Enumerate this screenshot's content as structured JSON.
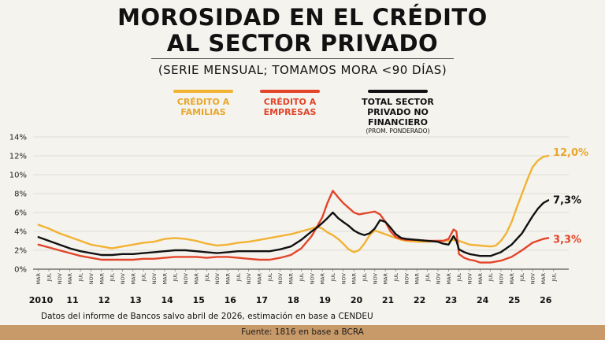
{
  "header": {
    "title_line1": "MOROSIDAD EN EL CRÉDITO",
    "title_line2": "AL SECTOR PRIVADO",
    "subtitle": "(SERIE MENSUAL; TOMAMOS MORA <90 DÍAS)"
  },
  "legend": {
    "families": "CRÉDITO A FAMILIAS",
    "companies": "CRÉDITO A EMPRESAS",
    "total": "TOTAL SECTOR PRIVADO NO FINANCIERO",
    "total_note": "(PROM. PONDERADO)"
  },
  "colors": {
    "families": "#f2b233",
    "companies": "#e2452a",
    "total": "#111111",
    "footer_bg": "#c89a6a",
    "background": "#f5f3ee"
  },
  "chart_data": {
    "type": "line",
    "x_unit": "years",
    "x_range": [
      2010.0,
      2026.83
    ],
    "ylim": [
      0,
      14
    ],
    "y_ticks": [
      "0%",
      "2%",
      "4%",
      "6%",
      "8%",
      "10%",
      "12%",
      "14%"
    ],
    "grid": true,
    "year_labels": [
      {
        "x": 2010.25,
        "label": "2010"
      },
      {
        "x": 2011.25,
        "label": "11"
      },
      {
        "x": 2012.25,
        "label": "12"
      },
      {
        "x": 2013.25,
        "label": "13"
      },
      {
        "x": 2014.25,
        "label": "14"
      },
      {
        "x": 2015.25,
        "label": "15"
      },
      {
        "x": 2016.25,
        "label": "16"
      },
      {
        "x": 2017.25,
        "label": "17"
      },
      {
        "x": 2018.25,
        "label": "18"
      },
      {
        "x": 2019.25,
        "label": "19"
      },
      {
        "x": 2020.25,
        "label": "20"
      },
      {
        "x": 2021.25,
        "label": "21"
      },
      {
        "x": 2022.25,
        "label": "22"
      },
      {
        "x": 2023.25,
        "label": "23"
      },
      {
        "x": 2024.25,
        "label": "24"
      },
      {
        "x": 2025.25,
        "label": "25"
      },
      {
        "x": 2026.25,
        "label": "26"
      }
    ],
    "month_ticks": [
      "MAR",
      "JUL",
      "NOV"
    ],
    "series": [
      {
        "name": "CRÉDITO A FAMILIAS",
        "color": "#f2b233",
        "end_label": "12,0%",
        "points": [
          [
            2010.17,
            4.7
          ],
          [
            2010.5,
            4.3
          ],
          [
            2010.83,
            3.8
          ],
          [
            2011.17,
            3.4
          ],
          [
            2011.5,
            3.0
          ],
          [
            2011.83,
            2.6
          ],
          [
            2012.17,
            2.4
          ],
          [
            2012.5,
            2.2
          ],
          [
            2012.83,
            2.4
          ],
          [
            2013.17,
            2.6
          ],
          [
            2013.5,
            2.8
          ],
          [
            2013.83,
            2.9
          ],
          [
            2014.17,
            3.2
          ],
          [
            2014.5,
            3.3
          ],
          [
            2014.83,
            3.2
          ],
          [
            2015.17,
            3.0
          ],
          [
            2015.5,
            2.7
          ],
          [
            2015.83,
            2.5
          ],
          [
            2016.17,
            2.6
          ],
          [
            2016.5,
            2.8
          ],
          [
            2016.83,
            2.9
          ],
          [
            2017.17,
            3.1
          ],
          [
            2017.5,
            3.3
          ],
          [
            2017.83,
            3.5
          ],
          [
            2018.17,
            3.7
          ],
          [
            2018.5,
            4.0
          ],
          [
            2018.83,
            4.3
          ],
          [
            2019.0,
            4.5
          ],
          [
            2019.17,
            4.3
          ],
          [
            2019.33,
            3.9
          ],
          [
            2019.5,
            3.6
          ],
          [
            2019.67,
            3.2
          ],
          [
            2019.83,
            2.7
          ],
          [
            2020.0,
            2.1
          ],
          [
            2020.17,
            1.8
          ],
          [
            2020.33,
            2.0
          ],
          [
            2020.5,
            2.7
          ],
          [
            2020.67,
            3.6
          ],
          [
            2020.83,
            4.1
          ],
          [
            2021.0,
            3.9
          ],
          [
            2021.17,
            3.7
          ],
          [
            2021.33,
            3.5
          ],
          [
            2021.5,
            3.3
          ],
          [
            2021.67,
            3.1
          ],
          [
            2021.83,
            3.0
          ],
          [
            2022.17,
            2.9
          ],
          [
            2022.5,
            2.9
          ],
          [
            2022.83,
            3.0
          ],
          [
            2023.17,
            3.0
          ],
          [
            2023.33,
            3.1
          ],
          [
            2023.5,
            3.0
          ],
          [
            2023.67,
            2.8
          ],
          [
            2023.83,
            2.6
          ],
          [
            2024.17,
            2.5
          ],
          [
            2024.5,
            2.4
          ],
          [
            2024.67,
            2.5
          ],
          [
            2024.83,
            3.0
          ],
          [
            2025.0,
            3.8
          ],
          [
            2025.17,
            5.0
          ],
          [
            2025.33,
            6.5
          ],
          [
            2025.5,
            8.0
          ],
          [
            2025.67,
            9.5
          ],
          [
            2025.83,
            10.8
          ],
          [
            2026.0,
            11.5
          ],
          [
            2026.17,
            11.9
          ],
          [
            2026.33,
            12.0
          ]
        ]
      },
      {
        "name": "CRÉDITO A EMPRESAS",
        "color": "#e2452a",
        "end_label": "3,3%",
        "points": [
          [
            2010.17,
            2.6
          ],
          [
            2010.5,
            2.3
          ],
          [
            2010.83,
            2.0
          ],
          [
            2011.17,
            1.7
          ],
          [
            2011.5,
            1.4
          ],
          [
            2011.83,
            1.2
          ],
          [
            2012.17,
            1.0
          ],
          [
            2012.5,
            1.0
          ],
          [
            2012.83,
            1.0
          ],
          [
            2013.17,
            1.0
          ],
          [
            2013.5,
            1.1
          ],
          [
            2013.83,
            1.1
          ],
          [
            2014.17,
            1.2
          ],
          [
            2014.5,
            1.3
          ],
          [
            2014.83,
            1.3
          ],
          [
            2015.17,
            1.3
          ],
          [
            2015.5,
            1.2
          ],
          [
            2015.83,
            1.3
          ],
          [
            2016.17,
            1.3
          ],
          [
            2016.5,
            1.2
          ],
          [
            2016.83,
            1.1
          ],
          [
            2017.17,
            1.0
          ],
          [
            2017.5,
            1.0
          ],
          [
            2017.83,
            1.2
          ],
          [
            2018.17,
            1.5
          ],
          [
            2018.5,
            2.2
          ],
          [
            2018.83,
            3.5
          ],
          [
            2019.0,
            4.5
          ],
          [
            2019.17,
            5.5
          ],
          [
            2019.33,
            7.0
          ],
          [
            2019.5,
            8.3
          ],
          [
            2019.67,
            7.6
          ],
          [
            2019.83,
            7.0
          ],
          [
            2020.0,
            6.5
          ],
          [
            2020.17,
            6.0
          ],
          [
            2020.33,
            5.8
          ],
          [
            2020.5,
            5.9
          ],
          [
            2020.67,
            6.0
          ],
          [
            2020.83,
            6.1
          ],
          [
            2021.0,
            5.8
          ],
          [
            2021.17,
            5.0
          ],
          [
            2021.33,
            4.0
          ],
          [
            2021.5,
            3.4
          ],
          [
            2021.67,
            3.2
          ],
          [
            2021.83,
            3.1
          ],
          [
            2022.17,
            3.1
          ],
          [
            2022.5,
            3.0
          ],
          [
            2022.83,
            3.0
          ],
          [
            2023.0,
            3.0
          ],
          [
            2023.17,
            3.2
          ],
          [
            2023.33,
            4.2
          ],
          [
            2023.42,
            4.0
          ],
          [
            2023.5,
            1.6
          ],
          [
            2023.67,
            1.2
          ],
          [
            2023.83,
            1.0
          ],
          [
            2024.0,
            0.9
          ],
          [
            2024.17,
            0.7
          ],
          [
            2024.5,
            0.7
          ],
          [
            2024.83,
            0.9
          ],
          [
            2025.17,
            1.3
          ],
          [
            2025.5,
            2.0
          ],
          [
            2025.83,
            2.8
          ],
          [
            2026.17,
            3.2
          ],
          [
            2026.33,
            3.3
          ]
        ]
      },
      {
        "name": "TOTAL SECTOR PRIVADO NO FINANCIERO",
        "color": "#111111",
        "end_label": "7,3%",
        "points": [
          [
            2010.17,
            3.4
          ],
          [
            2010.5,
            3.0
          ],
          [
            2010.83,
            2.6
          ],
          [
            2011.17,
            2.2
          ],
          [
            2011.5,
            1.9
          ],
          [
            2011.83,
            1.7
          ],
          [
            2012.17,
            1.5
          ],
          [
            2012.5,
            1.5
          ],
          [
            2012.83,
            1.6
          ],
          [
            2013.17,
            1.6
          ],
          [
            2013.5,
            1.7
          ],
          [
            2013.83,
            1.8
          ],
          [
            2014.17,
            1.9
          ],
          [
            2014.5,
            2.0
          ],
          [
            2014.83,
            2.0
          ],
          [
            2015.17,
            1.9
          ],
          [
            2015.5,
            1.8
          ],
          [
            2015.83,
            1.7
          ],
          [
            2016.17,
            1.8
          ],
          [
            2016.5,
            1.9
          ],
          [
            2016.83,
            1.9
          ],
          [
            2017.17,
            1.9
          ],
          [
            2017.5,
            1.9
          ],
          [
            2017.83,
            2.1
          ],
          [
            2018.17,
            2.4
          ],
          [
            2018.5,
            3.1
          ],
          [
            2018.83,
            4.0
          ],
          [
            2019.0,
            4.4
          ],
          [
            2019.17,
            4.9
          ],
          [
            2019.33,
            5.4
          ],
          [
            2019.5,
            6.0
          ],
          [
            2019.67,
            5.4
          ],
          [
            2019.83,
            5.0
          ],
          [
            2020.0,
            4.6
          ],
          [
            2020.17,
            4.1
          ],
          [
            2020.33,
            3.8
          ],
          [
            2020.5,
            3.6
          ],
          [
            2020.67,
            3.8
          ],
          [
            2020.83,
            4.3
          ],
          [
            2021.0,
            5.2
          ],
          [
            2021.17,
            5.0
          ],
          [
            2021.33,
            4.4
          ],
          [
            2021.5,
            3.7
          ],
          [
            2021.67,
            3.3
          ],
          [
            2021.83,
            3.2
          ],
          [
            2022.17,
            3.1
          ],
          [
            2022.5,
            3.0
          ],
          [
            2022.83,
            2.9
          ],
          [
            2023.0,
            2.7
          ],
          [
            2023.17,
            2.6
          ],
          [
            2023.33,
            3.5
          ],
          [
            2023.42,
            3.0
          ],
          [
            2023.5,
            2.1
          ],
          [
            2023.67,
            1.8
          ],
          [
            2023.83,
            1.6
          ],
          [
            2024.0,
            1.5
          ],
          [
            2024.17,
            1.4
          ],
          [
            2024.5,
            1.4
          ],
          [
            2024.83,
            1.8
          ],
          [
            2025.17,
            2.6
          ],
          [
            2025.5,
            3.8
          ],
          [
            2025.83,
            5.6
          ],
          [
            2026.0,
            6.4
          ],
          [
            2026.17,
            7.0
          ],
          [
            2026.33,
            7.3
          ]
        ]
      }
    ]
  },
  "caption": "Datos del informe de Bancos salvo abril de 2026, estimación en base a CENDEU",
  "footer": "Fuente: 1816 en base a BCRA"
}
